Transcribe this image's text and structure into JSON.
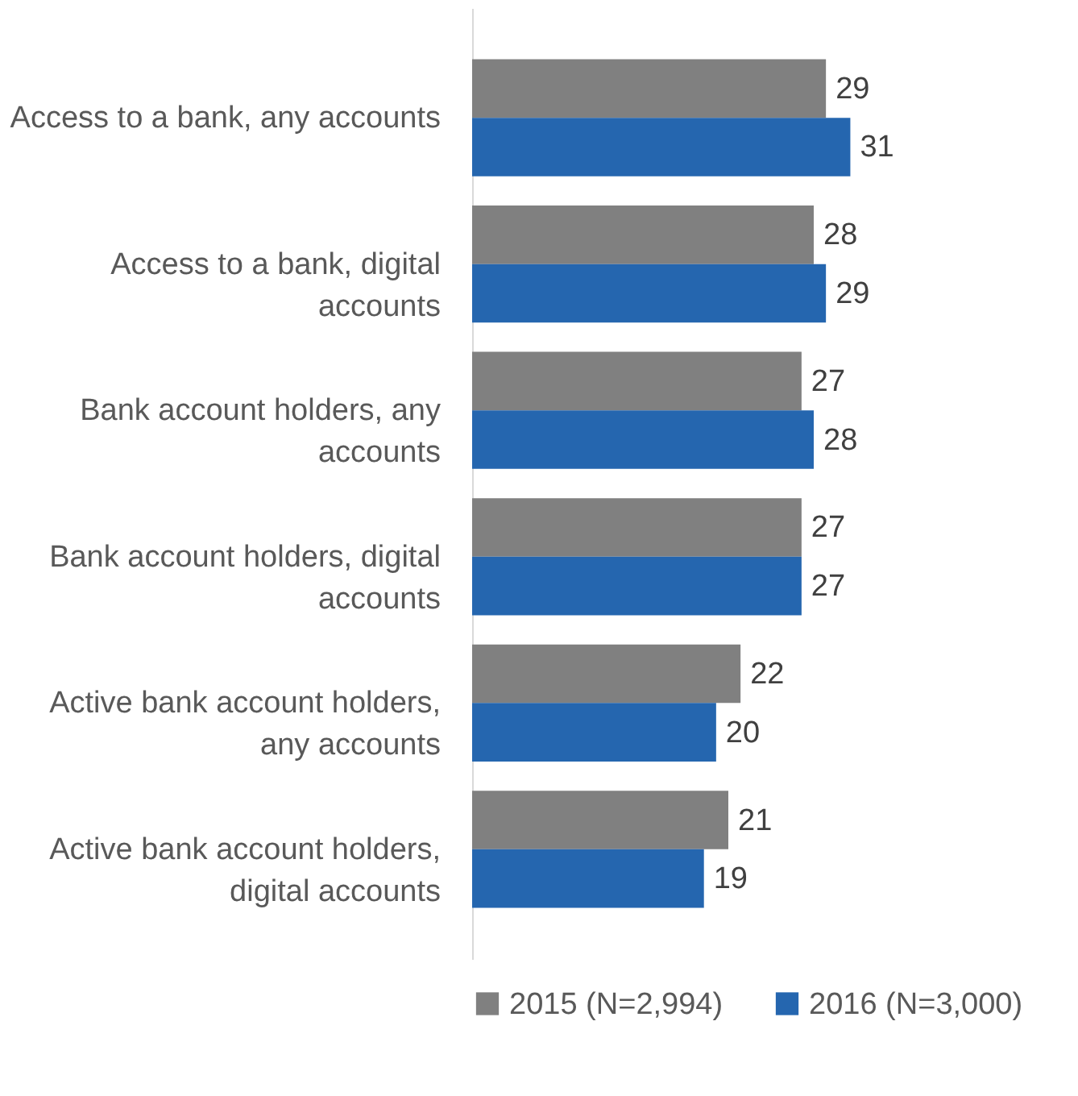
{
  "chart_data": {
    "type": "bar",
    "orientation": "horizontal",
    "data_labels": true,
    "legend": "bottom",
    "grid": false,
    "categories": [
      "Access to a bank, any accounts",
      "Access to a bank, digital accounts",
      "Bank account holders, any accounts",
      "Bank account holders, digital accounts",
      "Active bank account holders, any accounts",
      "Active bank account holders, digital accounts"
    ],
    "series": [
      {
        "name": "2015 (N=2,994)",
        "color": "#808080",
        "values": [
          29,
          28,
          27,
          27,
          22,
          21
        ]
      },
      {
        "name": "2016 (N=3,000)",
        "color": "#2566af",
        "values": [
          31,
          29,
          28,
          27,
          20,
          19
        ]
      }
    ]
  }
}
